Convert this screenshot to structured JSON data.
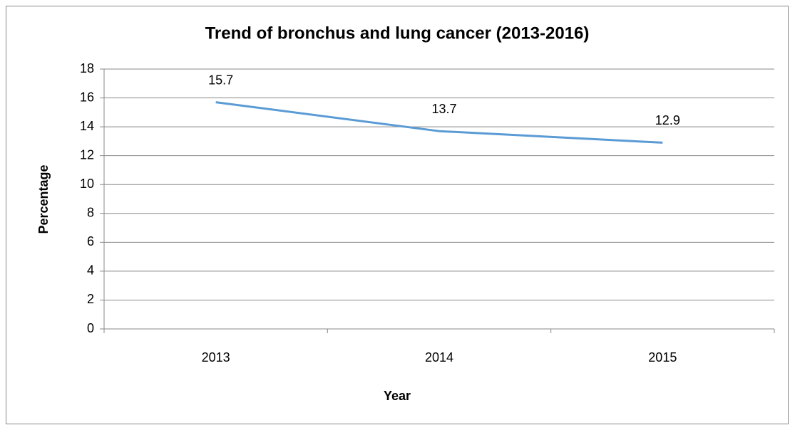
{
  "chart_data": {
    "type": "line",
    "title": "Trend of bronchus and lung cancer (2013-2016)",
    "x_label": "Year",
    "y_label": "Percentage",
    "categories": [
      "2013",
      "2014",
      "2015"
    ],
    "series": [
      {
        "name": "Percentage",
        "color": "#5b9bd5",
        "values": [
          15.7,
          13.7,
          12.9
        ]
      }
    ],
    "ylim": [
      0,
      18
    ],
    "yticks": [
      0,
      2,
      4,
      6,
      8,
      10,
      12,
      14,
      16,
      18
    ],
    "grid": true
  }
}
